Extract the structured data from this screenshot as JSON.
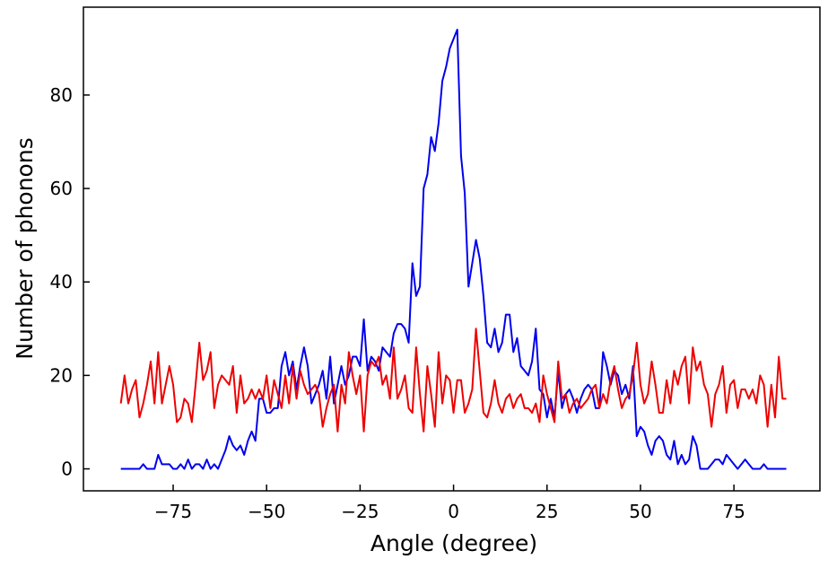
{
  "chart_data": {
    "type": "line",
    "xlabel": "Angle (degree)",
    "ylabel": "Number of phonons",
    "x": [
      -89,
      -88,
      -87,
      -86,
      -85,
      -84,
      -83,
      -82,
      -81,
      -80,
      -79,
      -78,
      -77,
      -76,
      -75,
      -74,
      -73,
      -72,
      -71,
      -70,
      -69,
      -68,
      -67,
      -66,
      -65,
      -64,
      -63,
      -62,
      -61,
      -60,
      -59,
      -58,
      -57,
      -56,
      -55,
      -54,
      -53,
      -52,
      -51,
      -50,
      -49,
      -48,
      -47,
      -46,
      -45,
      -44,
      -43,
      -42,
      -41,
      -40,
      -39,
      -38,
      -37,
      -36,
      -35,
      -34,
      -33,
      -32,
      -31,
      -30,
      -29,
      -28,
      -27,
      -26,
      -25,
      -24,
      -23,
      -22,
      -21,
      -20,
      -19,
      -18,
      -17,
      -16,
      -15,
      -14,
      -13,
      -12,
      -11,
      -10,
      -9,
      -8,
      -7,
      -6,
      -5,
      -4,
      -3,
      -2,
      -1,
      0,
      1,
      2,
      3,
      4,
      5,
      6,
      7,
      8,
      9,
      10,
      11,
      12,
      13,
      14,
      15,
      16,
      17,
      18,
      19,
      20,
      21,
      22,
      23,
      24,
      25,
      26,
      27,
      28,
      29,
      30,
      31,
      32,
      33,
      34,
      35,
      36,
      37,
      38,
      39,
      40,
      41,
      42,
      43,
      44,
      45,
      46,
      47,
      48,
      49,
      50,
      51,
      52,
      53,
      54,
      55,
      56,
      57,
      58,
      59,
      60,
      61,
      62,
      63,
      64,
      65,
      66,
      67,
      68,
      69,
      70,
      71,
      72,
      73,
      74,
      75,
      76,
      77,
      78,
      79,
      80,
      81,
      82,
      83,
      84,
      85,
      86,
      87,
      88,
      89
    ],
    "series": [
      {
        "color": "#0000ee",
        "values": [
          0,
          0,
          0,
          0,
          0,
          0,
          1,
          0,
          0,
          0,
          3,
          1,
          1,
          1,
          0,
          0,
          1,
          0,
          2,
          0,
          1,
          1,
          0,
          2,
          0,
          1,
          0,
          2,
          4,
          7,
          5,
          4,
          5,
          3,
          6,
          8,
          6,
          15,
          15,
          12,
          12,
          13,
          13,
          22,
          25,
          20,
          23,
          17,
          22,
          26,
          22,
          14,
          16,
          18,
          21,
          15,
          24,
          14,
          18,
          22,
          18,
          20,
          24,
          24,
          22,
          32,
          21,
          24,
          23,
          21,
          26,
          25,
          24,
          29,
          31,
          31,
          30,
          27,
          44,
          37,
          39,
          60,
          63,
          71,
          68,
          74,
          83,
          86,
          90,
          92,
          94,
          67,
          59,
          39,
          44,
          49,
          45,
          37,
          27,
          26,
          30,
          25,
          27,
          33,
          33,
          25,
          28,
          22,
          21,
          20,
          23,
          30,
          17,
          16,
          11,
          15,
          11,
          21,
          13,
          16,
          17,
          15,
          12,
          15,
          17,
          18,
          17,
          13,
          13,
          25,
          22,
          18,
          21,
          20,
          16,
          18,
          15,
          22,
          7,
          9,
          8,
          5,
          3,
          6,
          7,
          6,
          3,
          2,
          6,
          1,
          3,
          1,
          2,
          7,
          5,
          0,
          0,
          0,
          1,
          2,
          2,
          1,
          3,
          2,
          1,
          0,
          1,
          2,
          1,
          0,
          0,
          0,
          1,
          0,
          0,
          0,
          0,
          0,
          0
        ]
      },
      {
        "color": "#ee0000",
        "values": [
          14,
          20,
          14,
          17,
          19,
          11,
          14,
          18,
          23,
          14,
          25,
          14,
          18,
          22,
          18,
          10,
          11,
          15,
          14,
          10,
          18,
          27,
          19,
          21,
          25,
          13,
          18,
          20,
          19,
          18,
          22,
          12,
          20,
          14,
          15,
          17,
          15,
          17,
          15,
          20,
          13,
          19,
          16,
          13,
          20,
          14,
          22,
          15,
          21,
          18,
          16,
          17,
          18,
          16,
          9,
          13,
          16,
          18,
          8,
          18,
          14,
          25,
          20,
          16,
          20,
          8,
          20,
          23,
          22,
          24,
          18,
          20,
          15,
          26,
          15,
          17,
          20,
          13,
          12,
          26,
          16,
          8,
          22,
          16,
          9,
          25,
          14,
          20,
          19,
          12,
          19,
          19,
          12,
          14,
          17,
          30,
          21,
          12,
          11,
          14,
          19,
          14,
          12,
          15,
          16,
          13,
          15,
          16,
          13,
          13,
          12,
          14,
          10,
          20,
          16,
          13,
          10,
          23,
          15,
          16,
          12,
          14,
          15,
          13,
          14,
          15,
          17,
          18,
          13,
          16,
          14,
          19,
          22,
          17,
          13,
          15,
          16,
          20,
          27,
          18,
          14,
          16,
          23,
          18,
          12,
          12,
          19,
          14,
          21,
          18,
          22,
          24,
          14,
          26,
          21,
          23,
          18,
          16,
          9,
          16,
          18,
          22,
          12,
          18,
          19,
          13,
          17,
          17,
          15,
          17,
          14,
          20,
          18,
          9,
          18,
          11,
          24,
          15,
          15
        ]
      }
    ],
    "xlim": [
      -99,
      98
    ],
    "ylim": [
      -4.7,
      98.8
    ],
    "xticks": [
      {
        "value": -75,
        "label": "−75"
      },
      {
        "value": -50,
        "label": "−50"
      },
      {
        "value": -25,
        "label": "−25"
      },
      0,
      25,
      50,
      75
    ],
    "yticks": [
      0,
      20,
      40,
      60,
      80
    ]
  }
}
